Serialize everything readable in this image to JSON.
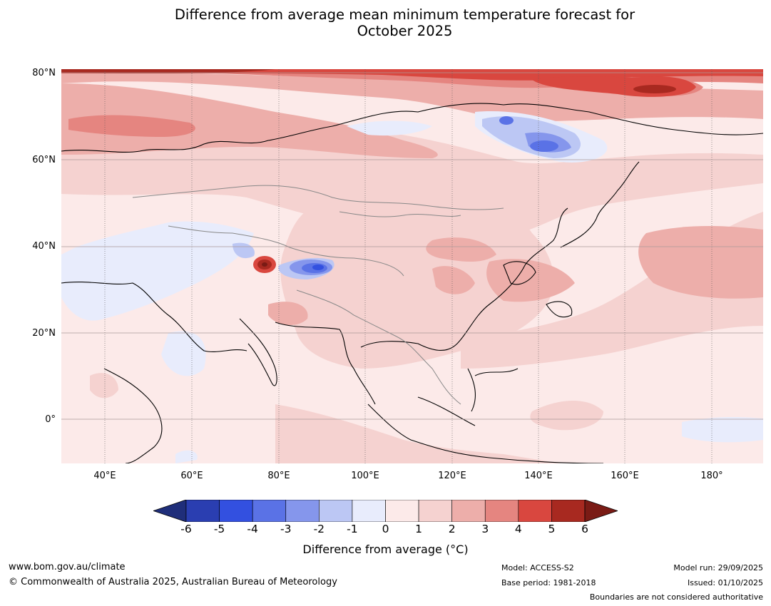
{
  "title_line1": "Difference from average mean minimum temperature forecast for",
  "title_line2": "October 2025",
  "lat_labels": [
    "80°N",
    "60°N",
    "40°N",
    "20°N",
    "0°"
  ],
  "lon_labels": [
    "40°E",
    "60°E",
    "80°E",
    "100°E",
    "120°E",
    "140°E",
    "160°E",
    "180°"
  ],
  "colorbar": {
    "ticks": [
      "-6",
      "-5",
      "-4",
      "-3",
      "-2",
      "-1",
      "0",
      "1",
      "2",
      "3",
      "4",
      "5",
      "6"
    ],
    "colors": [
      "#1f2e7a",
      "#2a3eb1",
      "#3350e0",
      "#5a72e6",
      "#8596ec",
      "#bcc7f4",
      "#e8ecfc",
      "#fceae9",
      "#f5d2d0",
      "#edaeaa",
      "#e58580",
      "#d9473f",
      "#a82920",
      "#7a1b15"
    ],
    "label": "Difference from average (°C)"
  },
  "footer": {
    "url": "www.bom.gov.au/climate",
    "copyright": "© Commonwealth of Australia 2025, Australian Bureau of Meteorology",
    "model": "Model: ACCESS-S2",
    "base_period": "Base period: 1981-2018",
    "model_run": "Model run: 29/09/2025",
    "issued": "Issued: 01/10/2025",
    "disclaimer": "Boundaries are not considered authoritative"
  }
}
